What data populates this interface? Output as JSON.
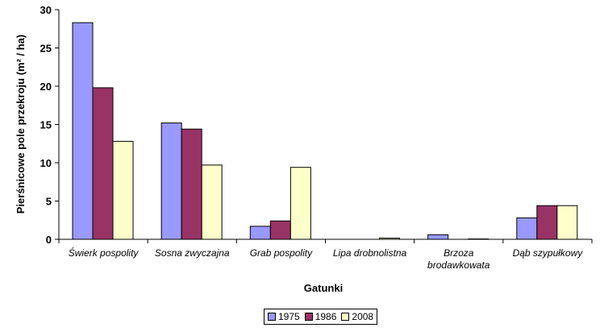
{
  "chart_data": {
    "type": "bar",
    "categories": [
      "Świerk pospolity",
      "Sosna zwyczajna",
      "Grab pospolity",
      "Lipa drobnolistna",
      "Brzoza brodawkowata",
      "Dąb szypułkowy"
    ],
    "series": [
      {
        "name": "1975",
        "color": "#9999ff",
        "values": [
          28.3,
          15.2,
          1.7,
          0.0,
          0.6,
          2.8
        ]
      },
      {
        "name": "1986",
        "color": "#993366",
        "values": [
          19.8,
          14.4,
          2.4,
          0.0,
          0.0,
          4.4
        ]
      },
      {
        "name": "2008",
        "color": "#ffffcc",
        "values": [
          12.8,
          9.7,
          9.4,
          0.15,
          0.05,
          4.4
        ]
      }
    ],
    "xlabel": "Gatunki",
    "ylabel": "Pierśnicowe pole przekroju (m² / ha)",
    "ylim": [
      0,
      30
    ],
    "yticks": [
      0,
      5,
      10,
      15,
      20,
      25,
      30
    ],
    "grid": false,
    "legend_position": "bottom"
  }
}
